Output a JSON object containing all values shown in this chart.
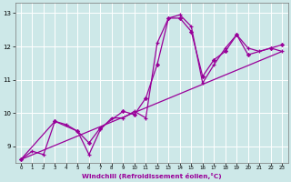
{
  "bg_color": "#cde8e8",
  "grid_color": "#b0d4d4",
  "line_color": "#990099",
  "xlabel": "Windchill (Refroidissement éolien,°C)",
  "xlim": [
    -0.5,
    23.5
  ],
  "ylim": [
    8.5,
    13.3
  ],
  "xticks": [
    0,
    1,
    2,
    3,
    4,
    5,
    6,
    7,
    8,
    9,
    10,
    11,
    12,
    13,
    14,
    15,
    16,
    17,
    18,
    19,
    20,
    21,
    22,
    23
  ],
  "yticks": [
    9,
    10,
    11,
    12,
    13
  ],
  "line1_x": [
    0,
    1,
    2,
    3,
    4,
    5,
    6,
    7,
    8,
    9,
    10,
    11,
    12,
    13,
    14,
    15,
    16,
    17,
    18,
    19,
    20,
    21,
    22,
    23
  ],
  "line1_y": [
    8.6,
    8.85,
    8.75,
    9.75,
    9.65,
    9.45,
    8.75,
    9.5,
    9.85,
    9.85,
    10.05,
    9.85,
    12.1,
    12.85,
    12.95,
    12.6,
    10.9,
    11.45,
    11.95,
    12.35,
    11.95,
    11.85,
    11.95,
    11.85
  ],
  "line2_x": [
    0,
    3,
    5,
    6,
    7,
    9,
    10,
    11,
    12,
    13,
    14,
    15,
    16,
    17,
    18,
    19,
    20,
    22,
    23
  ],
  "line2_y": [
    8.6,
    9.75,
    9.45,
    9.1,
    9.55,
    10.05,
    9.95,
    10.45,
    11.45,
    12.85,
    12.85,
    12.45,
    11.1,
    11.6,
    11.85,
    12.35,
    11.75,
    11.95,
    12.05
  ],
  "line3_x": [
    0,
    23
  ],
  "line3_y": [
    8.6,
    11.85
  ]
}
